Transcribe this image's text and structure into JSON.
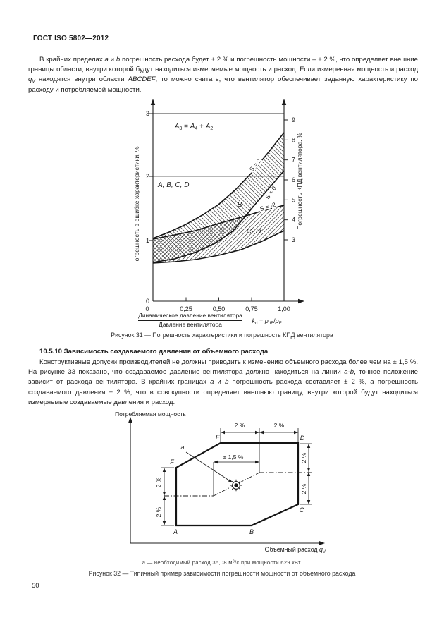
{
  "header": {
    "title": "ГОСТ ISO 5802—2012"
  },
  "paragraphs": {
    "p1_segments": [
      {
        "t": "В крайних пределах "
      },
      {
        "t": "a",
        "i": true
      },
      {
        "t": " и "
      },
      {
        "t": "b",
        "i": true
      },
      {
        "t": " погрешность расхода будет ± 2 % и погрешность мощности – ± 2 %, что определяет внешние границы области, внутри которой будут находиться измеряемые мощность и расход. Если измеренная мощность и расход "
      },
      {
        "t": "q",
        "i": true
      },
      {
        "t": "V",
        "i": true,
        "sub": true
      },
      {
        "t": " находятся внутри области "
      },
      {
        "t": "ABCDEF",
        "i": true
      },
      {
        "t": ", то можно считать, что вентилятор обеспечивает заданную характеристику по расходу и потребляемой мощности."
      }
    ],
    "section_heading": "10.5.10 Зависимость создаваемого давления от объемного расхода",
    "p2_segments": [
      {
        "t": "Конструктивные допуски производителей не должны приводить к изменению объемного расхода более чем на ± 1,5 %. На рисунке 33 показано, что создаваемое давление вентилятора должно находиться на линии "
      },
      {
        "t": "a-b",
        "i": true
      },
      {
        "t": ", точное положение зависит от расхода вентилятора. В крайних границах "
      },
      {
        "t": "a",
        "i": true
      },
      {
        "t": " и "
      },
      {
        "t": "b",
        "i": true
      },
      {
        "t": " погрешность расхода составляет ± 2 %, а погрешность создаваемого давления ± 2 %, что в совокупности определяет внешнюю границу, внутри которой будут находиться измеряемые создаваемые давления и расход."
      }
    ]
  },
  "fig31": {
    "left_axis_title": "Погрешность в ошибке характеристики, %",
    "right_axis_title": "Погрешность КПД вентилятора, %",
    "left_ticks": [
      "0",
      "1",
      "2",
      "3"
    ],
    "right_ticks": [
      "3",
      "4",
      "5",
      "6",
      "7",
      "8",
      "9"
    ],
    "x_ticks": [
      "0",
      "0,25",
      "0,50",
      "0,75",
      "1,00"
    ],
    "formula_segments": [
      {
        "t": "A",
        "i": true
      },
      {
        "t": "3",
        "sub": true
      },
      {
        "t": " = "
      },
      {
        "t": "A",
        "i": true
      },
      {
        "t": "4",
        "sub": true
      },
      {
        "t": " + "
      },
      {
        "t": "A",
        "i": true
      },
      {
        "t": "2",
        "sub": true
      }
    ],
    "region_label": "A, B, C, D",
    "band_b_label": "B",
    "band_cd_label": "C- D",
    "curve_labels": {
      "s2": "S = 2",
      "s0": "S = 0",
      "sm2": "S = -2"
    },
    "x_axis_fraction": {
      "numerator": "Динамическое давление вентилятора",
      "denominator": "Давление вентилятора"
    },
    "x_axis_formula_segments": [
      {
        "t": "· "
      },
      {
        "t": "k",
        "i": true
      },
      {
        "t": "d",
        "sub": true
      },
      {
        "t": " = "
      },
      {
        "t": "p",
        "i": true
      },
      {
        "t": "dF",
        "sub": true
      },
      {
        "t": "/"
      },
      {
        "t": "p",
        "i": true
      },
      {
        "t": "F",
        "sub": true
      }
    ],
    "caption": "Рисунок 31 — Погрешность характеристики и погрешность КПД вентилятора"
  },
  "fig32": {
    "y_axis_label": "Потребляемая мощность",
    "x_axis_label_segments": [
      {
        "t": "Объемный расход "
      },
      {
        "t": "q",
        "i": true
      },
      {
        "t": "V",
        "sub": true
      }
    ],
    "vertex_labels": {
      "a": "A",
      "b": "B",
      "c": "C",
      "d": "D",
      "e": "E",
      "f": "F"
    },
    "point_label": "a",
    "dim_two_pct": "2 %",
    "dim_pm": "± 1,5 %",
    "footnote_segments": [
      {
        "t": "a",
        "i": true
      },
      {
        "t": " — необходимый расход 36,08 м"
      },
      {
        "t": "3",
        "sup": true
      },
      {
        "t": "/с при мощности 629 кВт."
      }
    ],
    "caption": "Рисунок 32 — Типичный пример зависимости погрешности мощности от объемного расхода"
  },
  "page": {
    "number": "50"
  },
  "chart_data": {
    "type": "line",
    "x": [
      0,
      0.25,
      0.5,
      0.75,
      1.0
    ],
    "xlabel": "Динамическое давление вентилятора / Давление вентилятора · kd = pdF/pF",
    "ylabel_left": "Погрешность в ошибке характеристики, %",
    "ylabel_right": "Погрешность КПД вентилятора, %",
    "ylim_left": [
      0,
      3
    ],
    "right_axis_ticks": [
      3,
      4,
      5,
      6,
      7,
      8,
      9
    ],
    "x_ticks": [
      0,
      0.25,
      0.5,
      0.75,
      1.0
    ],
    "series": [
      {
        "name": "S = 2 (верхняя граница полосы B)",
        "values": [
          1.0,
          1.22,
          1.53,
          2.04,
          2.68
        ]
      },
      {
        "name": "S = 0 (нижняя граница полосы B)",
        "values": [
          0.61,
          0.68,
          0.93,
          1.74,
          2.08
        ]
      },
      {
        "name": "S = -2 (верхняя граница полосы C-D)",
        "values": [
          0.99,
          1.05,
          1.23,
          1.43,
          1.53
        ]
      },
      {
        "name": "нижняя граница полосы C-D",
        "values": [
          0.6,
          0.62,
          0.72,
          0.89,
          1.12
        ]
      }
    ],
    "annotations": [
      "A₃ = A₄ + A₂",
      "A, B, C, D",
      "B",
      "C- D"
    ],
    "grid_lines_y": [
      2,
      3
    ],
    "legend_position": "none"
  }
}
